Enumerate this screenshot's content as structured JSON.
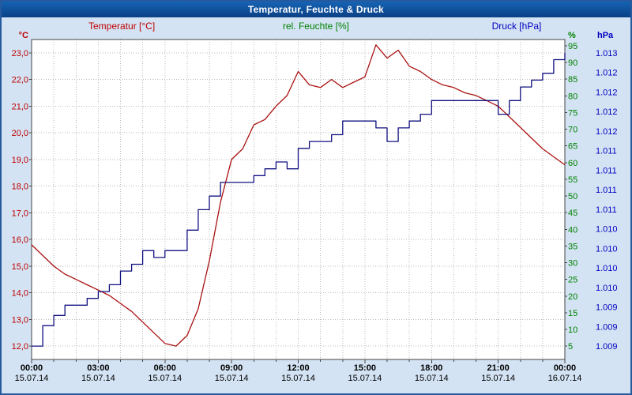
{
  "window": {
    "title": "Temperatur, Feuchte & Druck"
  },
  "legend": {
    "temperature": "Temperatur [°C]",
    "humidity": "rel. Feuchte [%]",
    "pressure": "Druck [hPa]"
  },
  "colors": {
    "titlebar": "#0b4185",
    "background": "#d3e3f3",
    "plot_background": "#ffffff",
    "grid": "#b9b9b9",
    "temperature_accent": "#c00000",
    "humidity_accent": "#008000",
    "pressure_accent": "#0000c0",
    "temperature_line": "#aa1111",
    "pressure_line": "#101080"
  },
  "chart_data": {
    "type": "line",
    "title": "Temperatur, Feuchte & Druck",
    "x_axis": {
      "tick_labels": [
        "00:00",
        "03:00",
        "06:00",
        "09:00",
        "12:00",
        "15:00",
        "18:00",
        "21:00",
        "00:00"
      ],
      "date_labels": [
        "15.07.14",
        "15.07.14",
        "15.07.14",
        "15.07.14",
        "15.07.14",
        "15.07.14",
        "15.07.14",
        "15.07.14",
        "16.07.14"
      ],
      "hours_span": 24,
      "minor_tick_hours": 1,
      "grid": "dashed"
    },
    "axes": {
      "temperature": {
        "unit": "°C",
        "tick_labels": [
          "23,0",
          "22,0",
          "21,0",
          "20,0",
          "19,0",
          "18,0",
          "17,0",
          "16,0",
          "15,0",
          "14,0",
          "13,0",
          "12,0"
        ],
        "min": 12.0,
        "max": 23.0
      },
      "humidity": {
        "unit": "%",
        "tick_labels": [
          "95",
          "90",
          "85",
          "80",
          "75",
          "70",
          "65",
          "60",
          "55",
          "50",
          "45",
          "40",
          "35",
          "30",
          "25",
          "20",
          "15",
          "10",
          "5"
        ],
        "min": 5,
        "max": 95
      },
      "pressure": {
        "unit": "hPa",
        "tick_labels": [
          "1.013",
          "1.012",
          "1.012",
          "1.012",
          "1.012",
          "1.011",
          "1.011",
          "1.011",
          "1.011",
          "1.010",
          "1.010",
          "1.010",
          "1.010",
          "1.009",
          "1.009",
          "1.009"
        ],
        "min": 1009.0,
        "max": 1013.3
      }
    },
    "series": [
      {
        "name": "Temperatur",
        "axis": "temperature",
        "unit": "°C",
        "color": "#aa1111",
        "interpolation": "linear",
        "start_hour": 0,
        "step_hours": 0.5,
        "values": [
          15.8,
          15.4,
          15.0,
          14.7,
          14.5,
          14.3,
          14.1,
          13.9,
          13.6,
          13.3,
          12.9,
          12.5,
          12.1,
          12.0,
          12.4,
          13.4,
          15.2,
          17.4,
          19.0,
          19.4,
          20.3,
          20.5,
          21.0,
          21.4,
          22.3,
          21.8,
          21.7,
          22.0,
          21.7,
          21.9,
          22.1,
          23.3,
          22.8,
          23.1,
          22.5,
          22.3,
          22.0,
          21.8,
          21.7,
          21.5,
          21.4,
          21.2,
          21.0,
          20.6,
          20.2,
          19.8,
          19.4,
          19.1,
          18.8
        ]
      },
      {
        "name": "Druck",
        "axis": "pressure",
        "unit": "hPa",
        "color": "#101080",
        "interpolation": "step",
        "start_hour": 0,
        "step_hours": 0.5,
        "values": [
          1009.0,
          1009.3,
          1009.45,
          1009.6,
          1009.6,
          1009.7,
          1009.8,
          1009.9,
          1010.1,
          1010.2,
          1010.4,
          1010.3,
          1010.4,
          1010.4,
          1010.7,
          1011.0,
          1011.2,
          1011.4,
          1011.4,
          1011.4,
          1011.5,
          1011.6,
          1011.7,
          1011.6,
          1011.9,
          1012.0,
          1012.0,
          1012.1,
          1012.3,
          1012.3,
          1012.3,
          1012.2,
          1012.0,
          1012.2,
          1012.3,
          1012.4,
          1012.6,
          1012.6,
          1012.6,
          1012.6,
          1012.6,
          1012.6,
          1012.4,
          1012.6,
          1012.8,
          1012.9,
          1013.0,
          1013.2,
          1013.3
        ]
      }
    ]
  }
}
